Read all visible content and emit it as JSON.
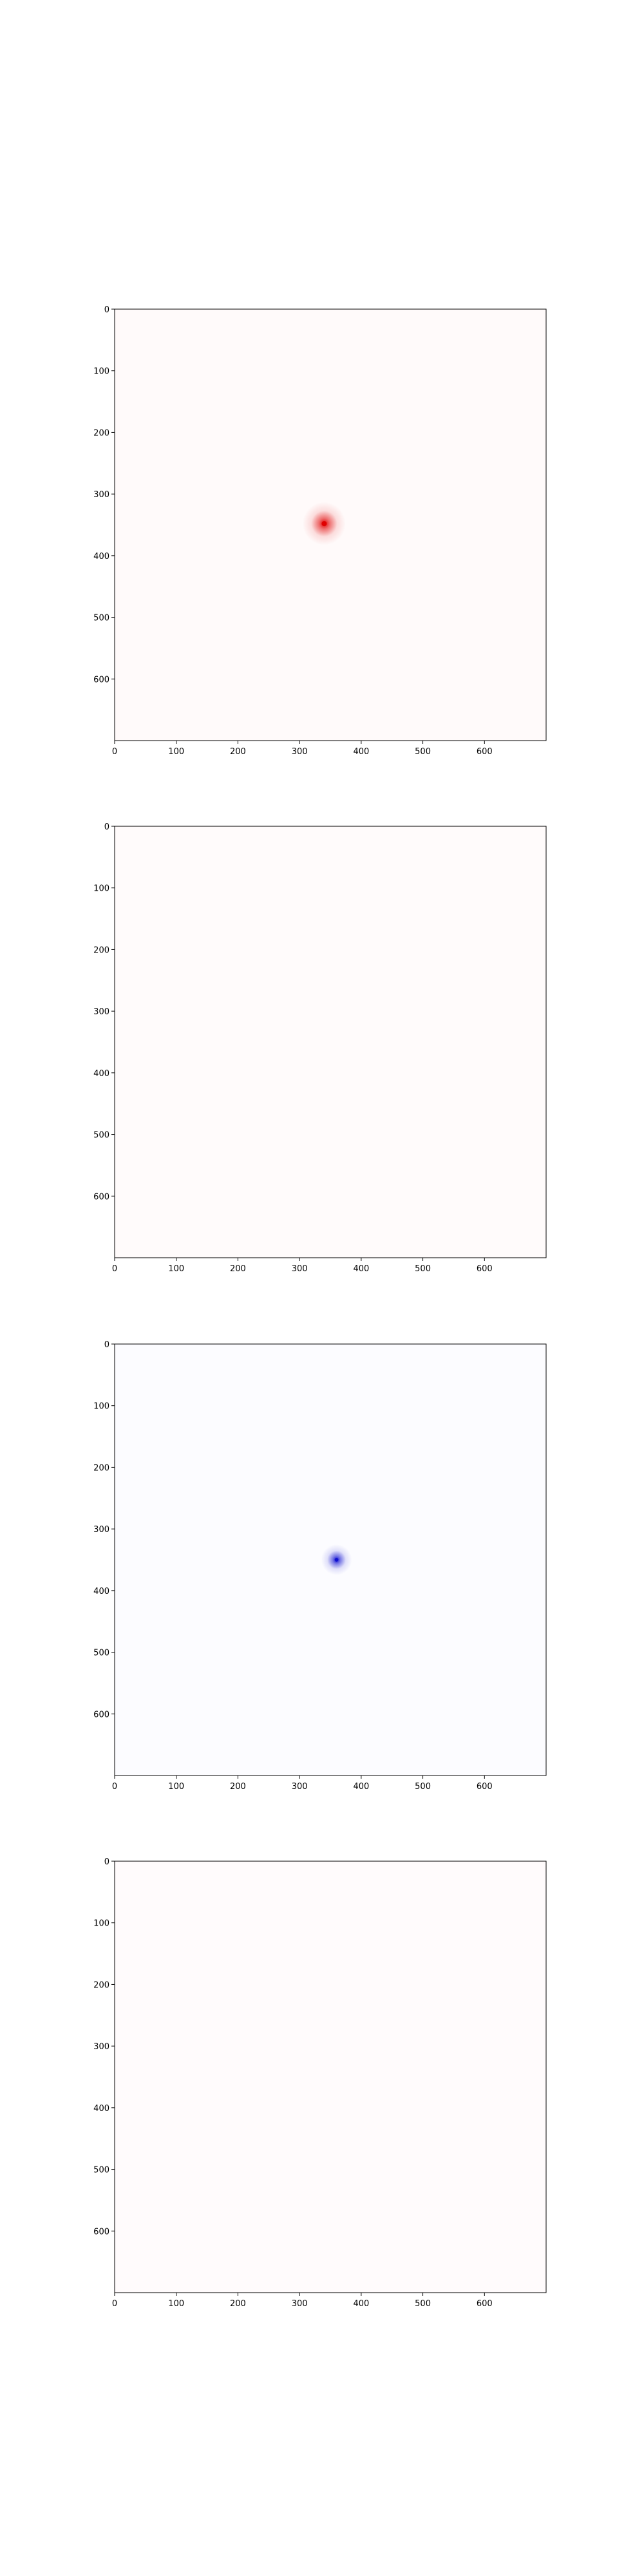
{
  "chart_data": [
    {
      "type": "heatmap",
      "title": "",
      "xlabel": "",
      "ylabel": "",
      "xlim": [
        0,
        700
      ],
      "ylim": [
        700,
        0
      ],
      "x_ticks": [
        "0",
        "100",
        "200",
        "300",
        "400",
        "500",
        "600"
      ],
      "y_ticks": [
        "0",
        "100",
        "200",
        "300",
        "400",
        "500",
        "600"
      ],
      "background_color": "#fffafa",
      "grid": false,
      "hotspots": [
        {
          "x": 340,
          "y": 348,
          "color": "#e00000",
          "intensity": 1.0,
          "spread": 35
        }
      ]
    },
    {
      "type": "heatmap",
      "title": "",
      "xlabel": "",
      "ylabel": "",
      "xlim": [
        0,
        700
      ],
      "ylim": [
        700,
        0
      ],
      "x_ticks": [
        "0",
        "100",
        "200",
        "300",
        "400",
        "500",
        "600"
      ],
      "y_ticks": [
        "0",
        "100",
        "200",
        "300",
        "400",
        "500",
        "600"
      ],
      "background_color": "#fffbfb",
      "grid": false,
      "hotspots": []
    },
    {
      "type": "heatmap",
      "title": "",
      "xlabel": "",
      "ylabel": "",
      "xlim": [
        0,
        700
      ],
      "ylim": [
        700,
        0
      ],
      "x_ticks": [
        "0",
        "100",
        "200",
        "300",
        "400",
        "500",
        "600"
      ],
      "y_ticks": [
        "0",
        "100",
        "200",
        "300",
        "400",
        "500",
        "600"
      ],
      "background_color": "#fcfcff",
      "grid": false,
      "hotspots": [
        {
          "x": 360,
          "y": 350,
          "color": "#1010d0",
          "intensity": 1.0,
          "spread": 25
        }
      ]
    },
    {
      "type": "heatmap",
      "title": "",
      "xlabel": "",
      "ylabel": "",
      "xlim": [
        0,
        700
      ],
      "ylim": [
        700,
        0
      ],
      "x_ticks": [
        "0",
        "100",
        "200",
        "300",
        "400",
        "500",
        "600"
      ],
      "y_ticks": [
        "0",
        "100",
        "200",
        "300",
        "400",
        "500",
        "600"
      ],
      "background_color": "#fffbfc",
      "grid": false,
      "hotspots": []
    }
  ]
}
